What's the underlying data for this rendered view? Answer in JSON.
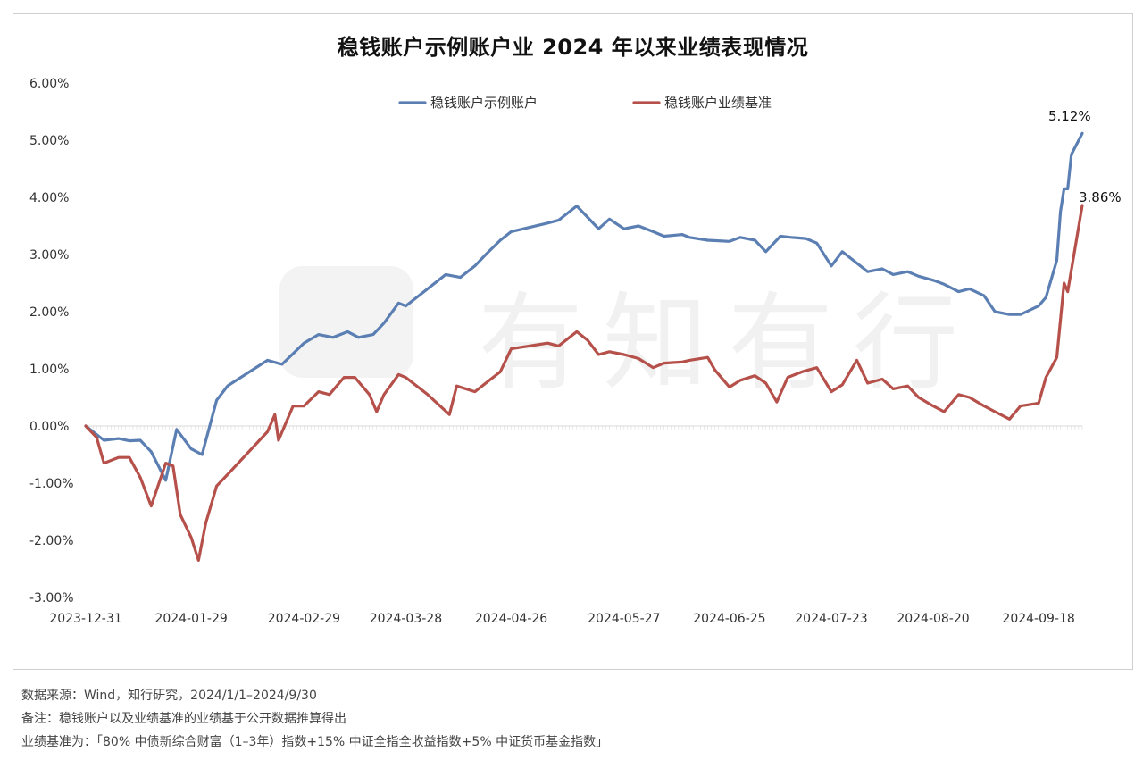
{
  "title": "稳钱账户示例账户业 2024 年以来业绩表现情况",
  "watermark": "有知有行",
  "notes": {
    "source": "数据来源：Wind，知行研究，2024/1/1–2024/9/30",
    "remark": "备注：稳钱账户以及业绩基准的业绩基于公开数据推算得出",
    "benchmark": "业绩基准为：「80% 中债新综合财富（1–3年）指数+15% 中证全指全收益指数+5% 中证货币基金指数」"
  },
  "chart_data": {
    "type": "line",
    "title": "稳钱账户示例账户业 2024 年以来业绩表现情况",
    "xlabel": "",
    "ylabel": "",
    "ylim": [
      -0.03,
      0.06
    ],
    "yticks": [
      "6.00%",
      "5.00%",
      "4.00%",
      "3.00%",
      "2.00%",
      "1.00%",
      "0.00%",
      "-1.00%",
      "-2.00%",
      "-3.00%"
    ],
    "yticks_values": [
      0.06,
      0.05,
      0.04,
      0.03,
      0.02,
      0.01,
      0.0,
      -0.01,
      -0.02,
      -0.03
    ],
    "x_tick_labels": [
      "2023-12-31",
      "2024-01-29",
      "2024-02-29",
      "2024-03-28",
      "2024-04-26",
      "2024-05-27",
      "2024-06-25",
      "2024-07-23",
      "2024-08-20",
      "2024-09-18"
    ],
    "x_range": [
      "2023-12-31",
      "2024-09-30"
    ],
    "grid": false,
    "legend_position": "top-center",
    "end_labels": [
      "5.12%",
      "3.86%"
    ],
    "series": [
      {
        "name": "稳钱账户示例账户",
        "color": "#5b7fb3",
        "points": [
          [
            "2023-12-31",
            0.0
          ],
          [
            "2024-01-05",
            -0.0025
          ],
          [
            "2024-01-09",
            -0.0022
          ],
          [
            "2024-01-12",
            -0.0026
          ],
          [
            "2024-01-15",
            -0.0025
          ],
          [
            "2024-01-18",
            -0.0045
          ],
          [
            "2024-01-22",
            -0.0095
          ],
          [
            "2024-01-25",
            -0.0006
          ],
          [
            "2024-01-29",
            -0.004
          ],
          [
            "2024-02-01",
            -0.005
          ],
          [
            "2024-02-05",
            0.0045
          ],
          [
            "2024-02-08",
            0.007
          ],
          [
            "2024-02-19",
            0.0115
          ],
          [
            "2024-02-23",
            0.0108
          ],
          [
            "2024-02-29",
            0.0145
          ],
          [
            "2024-03-04",
            0.016
          ],
          [
            "2024-03-08",
            0.0155
          ],
          [
            "2024-03-12",
            0.0165
          ],
          [
            "2024-03-15",
            0.0155
          ],
          [
            "2024-03-19",
            0.016
          ],
          [
            "2024-03-22",
            0.018
          ],
          [
            "2024-03-26",
            0.0215
          ],
          [
            "2024-03-28",
            0.021
          ],
          [
            "2024-04-02",
            0.0235
          ],
          [
            "2024-04-08",
            0.0265
          ],
          [
            "2024-04-12",
            0.026
          ],
          [
            "2024-04-16",
            0.028
          ],
          [
            "2024-04-19",
            0.03
          ],
          [
            "2024-04-23",
            0.0325
          ],
          [
            "2024-04-26",
            0.034
          ],
          [
            "2024-05-06",
            0.0355
          ],
          [
            "2024-05-09",
            0.036
          ],
          [
            "2024-05-14",
            0.0385
          ],
          [
            "2024-05-17",
            0.0365
          ],
          [
            "2024-05-20",
            0.0345
          ],
          [
            "2024-05-23",
            0.0362
          ],
          [
            "2024-05-27",
            0.0345
          ],
          [
            "2024-05-31",
            0.035
          ],
          [
            "2024-06-04",
            0.034
          ],
          [
            "2024-06-07",
            0.0332
          ],
          [
            "2024-06-12",
            0.0335
          ],
          [
            "2024-06-14",
            0.033
          ],
          [
            "2024-06-19",
            0.0325
          ],
          [
            "2024-06-25",
            0.0323
          ],
          [
            "2024-06-28",
            0.033
          ],
          [
            "2024-07-02",
            0.0325
          ],
          [
            "2024-07-05",
            0.0305
          ],
          [
            "2024-07-09",
            0.0332
          ],
          [
            "2024-07-12",
            0.033
          ],
          [
            "2024-07-16",
            0.0328
          ],
          [
            "2024-07-19",
            0.032
          ],
          [
            "2024-07-23",
            0.028
          ],
          [
            "2024-07-26",
            0.0305
          ],
          [
            "2024-07-30",
            0.0285
          ],
          [
            "2024-08-02",
            0.027
          ],
          [
            "2024-08-06",
            0.0275
          ],
          [
            "2024-08-09",
            0.0265
          ],
          [
            "2024-08-13",
            0.027
          ],
          [
            "2024-08-16",
            0.0262
          ],
          [
            "2024-08-20",
            0.0255
          ],
          [
            "2024-08-23",
            0.0248
          ],
          [
            "2024-08-27",
            0.0235
          ],
          [
            "2024-08-30",
            0.024
          ],
          [
            "2024-09-03",
            0.0228
          ],
          [
            "2024-09-06",
            0.02
          ],
          [
            "2024-09-10",
            0.0195
          ],
          [
            "2024-09-13",
            0.0195
          ],
          [
            "2024-09-18",
            0.021
          ],
          [
            "2024-09-20",
            0.0225
          ],
          [
            "2024-09-23",
            0.029
          ],
          [
            "2024-09-24",
            0.0375
          ],
          [
            "2024-09-25",
            0.0415
          ],
          [
            "2024-09-26",
            0.0415
          ],
          [
            "2024-09-27",
            0.0475
          ],
          [
            "2024-09-30",
            0.0512
          ]
        ]
      },
      {
        "name": "稳钱账户业绩基准",
        "color": "#b5504a",
        "points": [
          [
            "2023-12-31",
            0.0
          ],
          [
            "2024-01-03",
            -0.002
          ],
          [
            "2024-01-05",
            -0.0065
          ],
          [
            "2024-01-09",
            -0.0055
          ],
          [
            "2024-01-12",
            -0.0055
          ],
          [
            "2024-01-15",
            -0.009
          ],
          [
            "2024-01-18",
            -0.014
          ],
          [
            "2024-01-22",
            -0.0065
          ],
          [
            "2024-01-24",
            -0.007
          ],
          [
            "2024-01-26",
            -0.0155
          ],
          [
            "2024-01-29",
            -0.0195
          ],
          [
            "2024-01-31",
            -0.0235
          ],
          [
            "2024-02-02",
            -0.017
          ],
          [
            "2024-02-05",
            -0.0105
          ],
          [
            "2024-02-08",
            -0.0085
          ],
          [
            "2024-02-19",
            -0.001
          ],
          [
            "2024-02-21",
            0.002
          ],
          [
            "2024-02-22",
            -0.0025
          ],
          [
            "2024-02-26",
            0.0035
          ],
          [
            "2024-02-29",
            0.0035
          ],
          [
            "2024-03-04",
            0.006
          ],
          [
            "2024-03-07",
            0.0055
          ],
          [
            "2024-03-11",
            0.0085
          ],
          [
            "2024-03-14",
            0.0085
          ],
          [
            "2024-03-18",
            0.0055
          ],
          [
            "2024-03-20",
            0.0025
          ],
          [
            "2024-03-22",
            0.0055
          ],
          [
            "2024-03-26",
            0.009
          ],
          [
            "2024-03-28",
            0.0085
          ],
          [
            "2024-04-01",
            0.0065
          ],
          [
            "2024-04-03",
            0.0055
          ],
          [
            "2024-04-09",
            0.002
          ],
          [
            "2024-04-11",
            0.007
          ],
          [
            "2024-04-16",
            0.006
          ],
          [
            "2024-04-19",
            0.0075
          ],
          [
            "2024-04-23",
            0.0095
          ],
          [
            "2024-04-26",
            0.0135
          ],
          [
            "2024-05-06",
            0.0145
          ],
          [
            "2024-05-09",
            0.014
          ],
          [
            "2024-05-14",
            0.0165
          ],
          [
            "2024-05-17",
            0.015
          ],
          [
            "2024-05-20",
            0.0125
          ],
          [
            "2024-05-23",
            0.013
          ],
          [
            "2024-05-27",
            0.0125
          ],
          [
            "2024-05-31",
            0.0118
          ],
          [
            "2024-06-04",
            0.0102
          ],
          [
            "2024-06-07",
            0.011
          ],
          [
            "2024-06-12",
            0.0112
          ],
          [
            "2024-06-14",
            0.0115
          ],
          [
            "2024-06-19",
            0.012
          ],
          [
            "2024-06-21",
            0.0098
          ],
          [
            "2024-06-25",
            0.0068
          ],
          [
            "2024-06-28",
            0.008
          ],
          [
            "2024-07-02",
            0.0088
          ],
          [
            "2024-07-05",
            0.0075
          ],
          [
            "2024-07-08",
            0.0042
          ],
          [
            "2024-07-11",
            0.0085
          ],
          [
            "2024-07-15",
            0.0095
          ],
          [
            "2024-07-19",
            0.0102
          ],
          [
            "2024-07-23",
            0.006
          ],
          [
            "2024-07-26",
            0.0072
          ],
          [
            "2024-07-30",
            0.0115
          ],
          [
            "2024-08-02",
            0.0075
          ],
          [
            "2024-08-06",
            0.0082
          ],
          [
            "2024-08-09",
            0.0065
          ],
          [
            "2024-08-13",
            0.007
          ],
          [
            "2024-08-16",
            0.005
          ],
          [
            "2024-08-20",
            0.0035
          ],
          [
            "2024-08-23",
            0.0025
          ],
          [
            "2024-08-27",
            0.0055
          ],
          [
            "2024-08-30",
            0.005
          ],
          [
            "2024-09-03",
            0.0035
          ],
          [
            "2024-09-06",
            0.0025
          ],
          [
            "2024-09-10",
            0.0012
          ],
          [
            "2024-09-13",
            0.0035
          ],
          [
            "2024-09-18",
            0.004
          ],
          [
            "2024-09-20",
            0.0085
          ],
          [
            "2024-09-23",
            0.012
          ],
          [
            "2024-09-25",
            0.025
          ],
          [
            "2024-09-26",
            0.0235
          ],
          [
            "2024-09-30",
            0.0386
          ]
        ]
      }
    ]
  }
}
